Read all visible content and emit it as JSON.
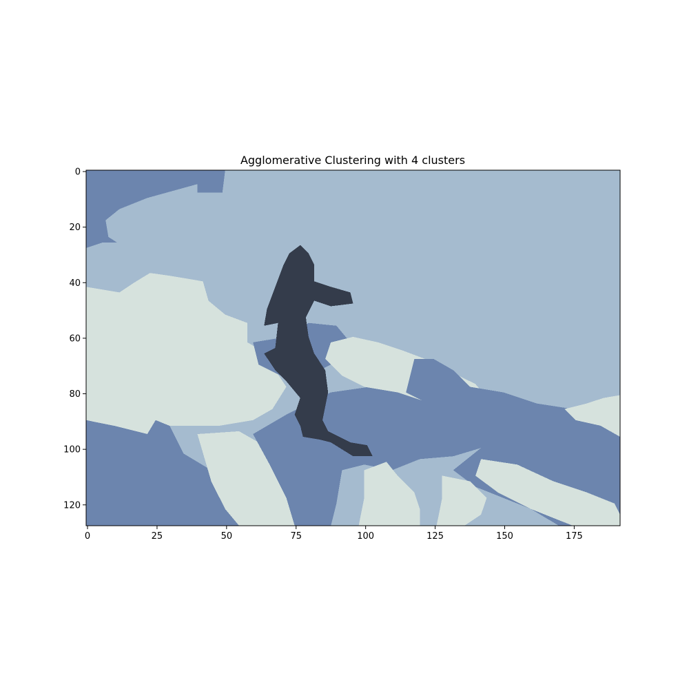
{
  "chart_data": {
    "type": "heatmap",
    "title": "Agglomerative Clustering with 4 clusters",
    "xlabel": "",
    "ylabel": "",
    "image_width": 192,
    "image_height": 128,
    "xlim": [
      -0.5,
      191.5
    ],
    "ylim": [
      127.5,
      -0.5
    ],
    "x_ticks": [
      0,
      25,
      50,
      75,
      100,
      125,
      150,
      175
    ],
    "y_ticks": [
      0,
      20,
      40,
      60,
      80,
      100,
      120
    ],
    "grid": false,
    "legend": "none",
    "clusters": [
      {
        "id": 0,
        "color": "#a5bbcf"
      },
      {
        "id": 1,
        "color": "#6c85ae"
      },
      {
        "id": 2,
        "color": "#d6e2dd"
      },
      {
        "id": 3,
        "color": "#343c4b"
      }
    ],
    "background_cluster": 0,
    "regions": [
      {
        "cluster": 1,
        "points": [
          [
            0,
            0
          ],
          [
            50,
            0
          ],
          [
            49,
            8
          ],
          [
            40,
            8
          ],
          [
            40,
            5
          ],
          [
            22,
            10
          ],
          [
            12,
            14
          ],
          [
            7,
            18
          ],
          [
            8,
            24
          ],
          [
            11,
            26
          ],
          [
            6,
            26
          ],
          [
            0,
            28
          ]
        ]
      },
      {
        "cluster": 2,
        "points": [
          [
            0,
            42
          ],
          [
            12,
            44
          ],
          [
            18,
            40
          ],
          [
            23,
            37
          ],
          [
            30,
            38
          ],
          [
            42,
            40
          ],
          [
            44,
            47
          ],
          [
            50,
            52
          ],
          [
            58,
            55
          ],
          [
            58,
            62
          ],
          [
            65,
            66
          ],
          [
            68,
            72
          ],
          [
            72,
            78
          ],
          [
            67,
            86
          ],
          [
            60,
            90
          ],
          [
            48,
            92
          ],
          [
            30,
            92
          ],
          [
            25,
            90
          ],
          [
            22,
            95
          ],
          [
            10,
            92
          ],
          [
            0,
            90
          ]
        ]
      },
      {
        "cluster": 1,
        "points": [
          [
            0,
            90
          ],
          [
            10,
            92
          ],
          [
            22,
            95
          ],
          [
            25,
            90
          ],
          [
            30,
            92
          ],
          [
            35,
            102
          ],
          [
            45,
            108
          ],
          [
            55,
            115
          ],
          [
            60,
            122
          ],
          [
            60,
            128
          ],
          [
            0,
            128
          ]
        ]
      },
      {
        "cluster": 2,
        "points": [
          [
            40,
            95
          ],
          [
            55,
            94
          ],
          [
            62,
            98
          ],
          [
            68,
            106
          ],
          [
            72,
            115
          ],
          [
            76,
            122
          ],
          [
            78,
            128
          ],
          [
            55,
            128
          ],
          [
            50,
            122
          ],
          [
            45,
            112
          ]
        ]
      },
      {
        "cluster": 1,
        "points": [
          [
            60,
            62
          ],
          [
            72,
            60
          ],
          [
            80,
            55
          ],
          [
            90,
            56
          ],
          [
            95,
            62
          ],
          [
            88,
            70
          ],
          [
            80,
            74
          ],
          [
            70,
            74
          ],
          [
            62,
            70
          ]
        ]
      },
      {
        "cluster": 1,
        "points": [
          [
            60,
            95
          ],
          [
            72,
            88
          ],
          [
            88,
            80
          ],
          [
            102,
            78
          ],
          [
            115,
            80
          ],
          [
            125,
            85
          ],
          [
            135,
            92
          ],
          [
            142,
            100
          ],
          [
            132,
            103
          ],
          [
            120,
            104
          ],
          [
            110,
            108
          ],
          [
            100,
            106
          ],
          [
            92,
            108
          ],
          [
            90,
            120
          ],
          [
            88,
            128
          ],
          [
            75,
            128
          ],
          [
            72,
            118
          ],
          [
            66,
            106
          ]
        ]
      },
      {
        "cluster": 2,
        "points": [
          [
            88,
            62
          ],
          [
            96,
            60
          ],
          [
            105,
            62
          ],
          [
            114,
            65
          ],
          [
            122,
            68
          ],
          [
            130,
            72
          ],
          [
            140,
            77
          ],
          [
            146,
            84
          ],
          [
            152,
            92
          ],
          [
            160,
            98
          ],
          [
            168,
            102
          ],
          [
            164,
            106
          ],
          [
            156,
            100
          ],
          [
            146,
            98
          ],
          [
            136,
            90
          ],
          [
            124,
            84
          ],
          [
            112,
            80
          ],
          [
            100,
            78
          ],
          [
            92,
            74
          ],
          [
            86,
            68
          ]
        ]
      },
      {
        "cluster": 1,
        "points": [
          [
            118,
            68
          ],
          [
            125,
            68
          ],
          [
            132,
            72
          ],
          [
            138,
            78
          ],
          [
            150,
            80
          ],
          [
            162,
            84
          ],
          [
            175,
            86
          ],
          [
            192,
            90
          ],
          [
            192,
            128
          ],
          [
            170,
            128
          ],
          [
            160,
            122
          ],
          [
            150,
            118
          ],
          [
            140,
            114
          ],
          [
            132,
            108
          ],
          [
            142,
            100
          ],
          [
            135,
            92
          ],
          [
            125,
            85
          ],
          [
            115,
            80
          ]
        ]
      },
      {
        "cluster": 2,
        "points": [
          [
            142,
            104
          ],
          [
            155,
            106
          ],
          [
            168,
            112
          ],
          [
            180,
            116
          ],
          [
            190,
            120
          ],
          [
            192,
            124
          ],
          [
            192,
            128
          ],
          [
            175,
            128
          ],
          [
            160,
            122
          ],
          [
            148,
            116
          ],
          [
            140,
            110
          ]
        ]
      },
      {
        "cluster": 2,
        "points": [
          [
            172,
            86
          ],
          [
            180,
            84
          ],
          [
            186,
            82
          ],
          [
            192,
            81
          ],
          [
            192,
            96
          ],
          [
            185,
            92
          ],
          [
            176,
            90
          ]
        ]
      },
      {
        "cluster": 2,
        "points": [
          [
            100,
            108
          ],
          [
            108,
            105
          ],
          [
            112,
            110
          ],
          [
            118,
            116
          ],
          [
            120,
            122
          ],
          [
            120,
            128
          ],
          [
            98,
            128
          ],
          [
            100,
            118
          ]
        ]
      },
      {
        "cluster": 2,
        "points": [
          [
            128,
            110
          ],
          [
            138,
            112
          ],
          [
            144,
            118
          ],
          [
            142,
            124
          ],
          [
            136,
            128
          ],
          [
            126,
            128
          ],
          [
            128,
            118
          ]
        ]
      },
      {
        "cluster": 3,
        "points": [
          [
            71,
            34
          ],
          [
            73,
            30
          ],
          [
            77,
            27
          ],
          [
            80,
            30
          ],
          [
            82,
            34
          ],
          [
            82,
            40
          ],
          [
            88,
            42
          ],
          [
            95,
            44
          ],
          [
            96,
            48
          ],
          [
            88,
            49
          ],
          [
            82,
            47
          ],
          [
            79,
            53
          ],
          [
            80,
            60
          ],
          [
            82,
            66
          ],
          [
            86,
            72
          ],
          [
            87,
            80
          ],
          [
            85,
            90
          ],
          [
            87,
            94
          ],
          [
            91,
            96
          ],
          [
            95,
            98
          ],
          [
            101,
            99
          ],
          [
            103,
            103
          ],
          [
            96,
            103
          ],
          [
            88,
            98
          ],
          [
            84,
            97
          ],
          [
            78,
            96
          ],
          [
            77,
            92
          ],
          [
            75,
            88
          ],
          [
            77,
            82
          ],
          [
            72,
            76
          ],
          [
            68,
            72
          ],
          [
            64,
            66
          ],
          [
            68,
            64
          ],
          [
            69,
            55
          ],
          [
            64,
            56
          ],
          [
            65,
            50
          ]
        ]
      }
    ]
  }
}
